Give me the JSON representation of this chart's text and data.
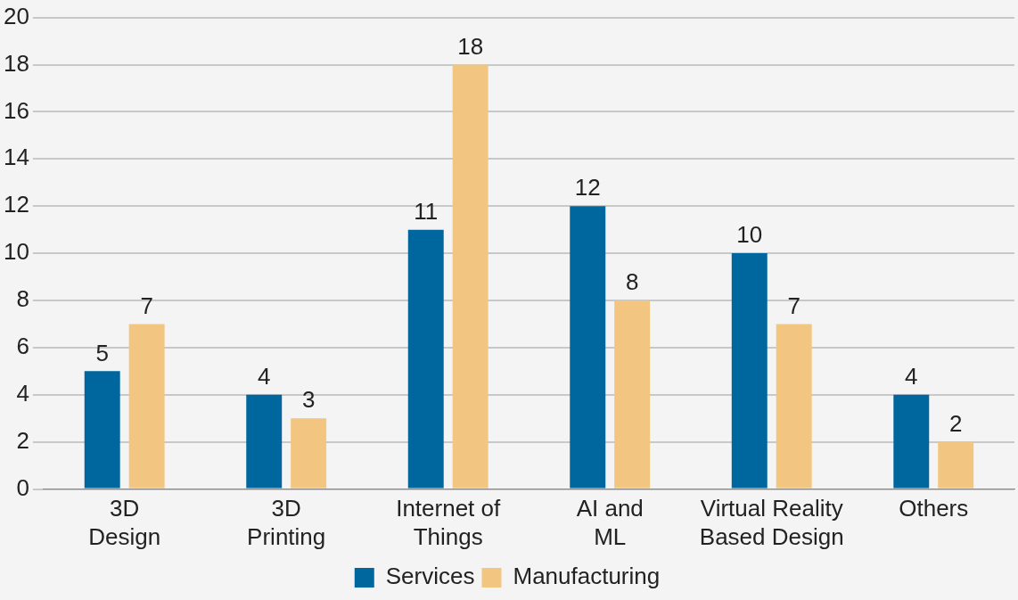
{
  "chart_data": {
    "type": "bar",
    "categories": [
      "3D\nDesign",
      "3D\nPrinting",
      "Internet of\nThings",
      "AI and\nML",
      "Virtual Reality\nBased Design",
      "Others"
    ],
    "series": [
      {
        "name": "Services",
        "color": "#00669e",
        "values": [
          5,
          4,
          11,
          12,
          10,
          4
        ]
      },
      {
        "name": "Manufacturing",
        "color": "#f2c580",
        "values": [
          7,
          3,
          18,
          8,
          7,
          2
        ]
      }
    ],
    "ylim": [
      0,
      20
    ],
    "yticks": [
      0,
      2,
      4,
      6,
      8,
      10,
      12,
      14,
      16,
      18,
      20
    ],
    "grid": "y",
    "legend": "bottom",
    "data_labels": true
  }
}
